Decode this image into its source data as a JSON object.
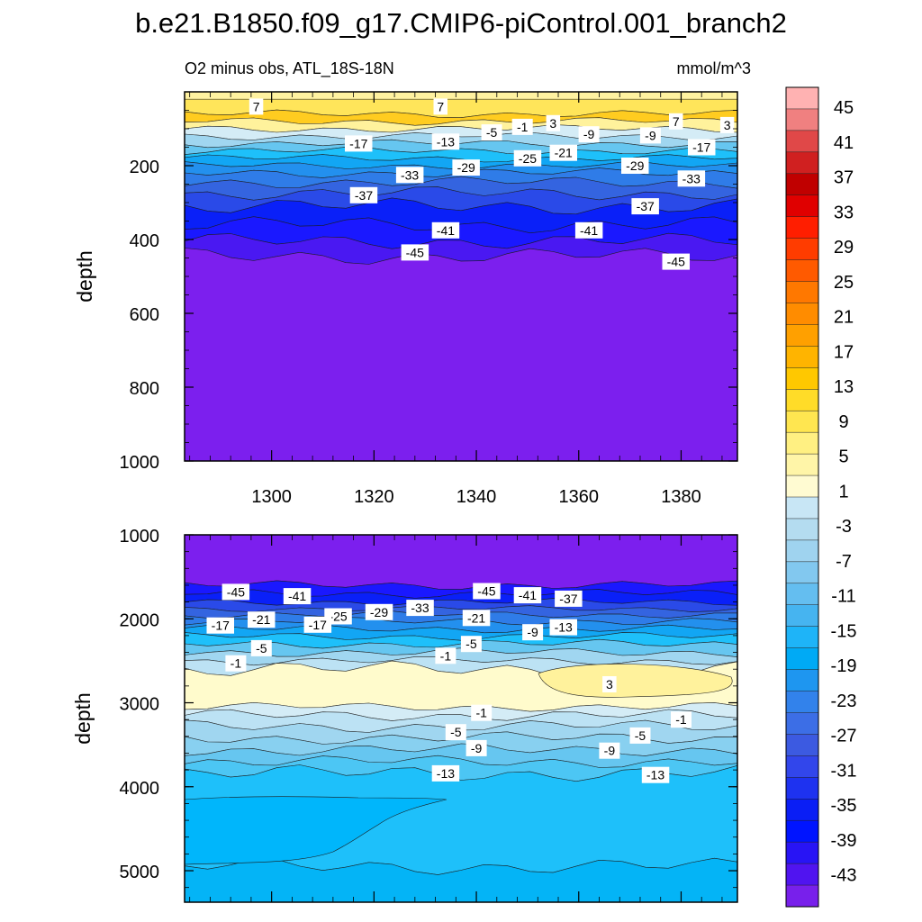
{
  "title": "b.e21.B1850.f09_g17.CMIP6-piControl.001_branch2",
  "subtitle_left": "O2 minus obs, ATL_18S-18N",
  "units": "mmol/m^3",
  "chart_data": [
    {
      "type": "contour",
      "panel": "upper",
      "ylabel": "depth",
      "yticks": [
        "200",
        "400",
        "600",
        "800",
        "1000"
      ],
      "ylim": [
        0,
        1000
      ],
      "xticks": [
        "1300",
        "1320",
        "1340",
        "1360",
        "1380"
      ],
      "xlim": [
        1283,
        1391
      ],
      "bands": [
        {
          "from": 20,
          "to": 60,
          "value": 5
        },
        {
          "from": 60,
          "to": 80,
          "value": 7
        },
        {
          "from": 80,
          "to": 100,
          "value": 3
        },
        {
          "from": 100,
          "to": 120,
          "value": -1
        },
        {
          "from": 120,
          "to": 140,
          "value": -5
        },
        {
          "from": 140,
          "to": 160,
          "value": -9
        },
        {
          "from": 160,
          "to": 180,
          "value": -13
        },
        {
          "from": 180,
          "to": 200,
          "value": -17
        },
        {
          "from": 200,
          "to": 220,
          "value": -21
        },
        {
          "from": 220,
          "to": 245,
          "value": -25
        },
        {
          "from": 245,
          "to": 275,
          "value": -29
        },
        {
          "from": 275,
          "to": 310,
          "value": -33
        },
        {
          "from": 310,
          "to": 360,
          "value": -37
        },
        {
          "from": 360,
          "to": 405,
          "value": -41
        },
        {
          "from": 405,
          "to": 445,
          "value": -43
        },
        {
          "from": 445,
          "to": 1000,
          "value": -45
        }
      ],
      "contour_labels": [
        {
          "text": "7",
          "x": 1297,
          "y": 40
        },
        {
          "text": "7",
          "x": 1333,
          "y": 40
        },
        {
          "text": "-5",
          "x": 1343,
          "y": 110
        },
        {
          "text": "-1",
          "x": 1349,
          "y": 95
        },
        {
          "text": "3",
          "x": 1355,
          "y": 85
        },
        {
          "text": "-9",
          "x": 1362,
          "y": 115
        },
        {
          "text": "-9",
          "x": 1374,
          "y": 118
        },
        {
          "text": "7",
          "x": 1379,
          "y": 80
        },
        {
          "text": "3",
          "x": 1389,
          "y": 90
        },
        {
          "text": "-17",
          "x": 1317,
          "y": 140
        },
        {
          "text": "-13",
          "x": 1334,
          "y": 135
        },
        {
          "text": "-21",
          "x": 1357,
          "y": 165
        },
        {
          "text": "-25",
          "x": 1350,
          "y": 180
        },
        {
          "text": "-29",
          "x": 1338,
          "y": 205
        },
        {
          "text": "-29",
          "x": 1371,
          "y": 200
        },
        {
          "text": "-17",
          "x": 1384,
          "y": 150
        },
        {
          "text": "-33",
          "x": 1327,
          "y": 225
        },
        {
          "text": "-33",
          "x": 1382,
          "y": 235
        },
        {
          "text": "-37",
          "x": 1318,
          "y": 280
        },
        {
          "text": "-37",
          "x": 1373,
          "y": 310
        },
        {
          "text": "-41",
          "x": 1334,
          "y": 375
        },
        {
          "text": "-41",
          "x": 1362,
          "y": 375
        },
        {
          "text": "-45",
          "x": 1328,
          "y": 435
        },
        {
          "text": "-45",
          "x": 1379,
          "y": 460
        }
      ]
    },
    {
      "type": "contour",
      "panel": "lower",
      "ylabel": "depth",
      "yticks": [
        "1000",
        "2000",
        "3000",
        "4000",
        "5000"
      ],
      "ylim": [
        1000,
        5375
      ],
      "xlim": [
        1283,
        1391
      ],
      "bands": [
        {
          "from": 1000,
          "to": 1600,
          "value": -45
        },
        {
          "from": 1600,
          "to": 1700,
          "value": -41
        },
        {
          "from": 1700,
          "to": 1800,
          "value": -37
        },
        {
          "from": 1800,
          "to": 1880,
          "value": -33
        },
        {
          "from": 1880,
          "to": 1950,
          "value": -29
        },
        {
          "from": 1950,
          "to": 2030,
          "value": -25
        },
        {
          "from": 2030,
          "to": 2120,
          "value": -21
        },
        {
          "from": 2120,
          "to": 2210,
          "value": -17
        },
        {
          "from": 2210,
          "to": 2300,
          "value": -13
        },
        {
          "from": 2300,
          "to": 2400,
          "value": -9
        },
        {
          "from": 2400,
          "to": 2500,
          "value": -5
        },
        {
          "from": 2500,
          "to": 2600,
          "value": -3
        },
        {
          "from": 2600,
          "to": 3050,
          "value": 1
        },
        {
          "from": 3050,
          "to": 3150,
          "value": -1
        },
        {
          "from": 3150,
          "to": 3280,
          "value": -3
        },
        {
          "from": 3280,
          "to": 3420,
          "value": -5
        },
        {
          "from": 3420,
          "to": 3560,
          "value": -7
        },
        {
          "from": 3560,
          "to": 3700,
          "value": -9
        },
        {
          "from": 3700,
          "to": 3840,
          "value": -11
        },
        {
          "from": 3840,
          "to": 4950,
          "value": -13
        },
        {
          "from": 4950,
          "to": 5375,
          "value": -15
        }
      ],
      "contour_labels": [
        {
          "text": "-45",
          "x": 1293,
          "y": 1680
        },
        {
          "text": "-41",
          "x": 1305,
          "y": 1730
        },
        {
          "text": "-45",
          "x": 1342,
          "y": 1670
        },
        {
          "text": "-41",
          "x": 1350,
          "y": 1720
        },
        {
          "text": "-37",
          "x": 1358,
          "y": 1760
        },
        {
          "text": "-25",
          "x": 1313,
          "y": 1970
        },
        {
          "text": "-29",
          "x": 1321,
          "y": 1920
        },
        {
          "text": "-33",
          "x": 1329,
          "y": 1870
        },
        {
          "text": "-17",
          "x": 1290,
          "y": 2080
        },
        {
          "text": "-21",
          "x": 1298,
          "y": 2010
        },
        {
          "text": "-17",
          "x": 1309,
          "y": 2070
        },
        {
          "text": "-21",
          "x": 1340,
          "y": 1990
        },
        {
          "text": "-9",
          "x": 1351,
          "y": 2160
        },
        {
          "text": "-13",
          "x": 1357,
          "y": 2100
        },
        {
          "text": "-5",
          "x": 1298,
          "y": 2350
        },
        {
          "text": "-5",
          "x": 1339,
          "y": 2300
        },
        {
          "text": "-1",
          "x": 1293,
          "y": 2530
        },
        {
          "text": "-1",
          "x": 1334,
          "y": 2440
        },
        {
          "text": "3",
          "x": 1366,
          "y": 2780
        },
        {
          "text": "-1",
          "x": 1341,
          "y": 3120
        },
        {
          "text": "-1",
          "x": 1380,
          "y": 3200
        },
        {
          "text": "-5",
          "x": 1336,
          "y": 3350
        },
        {
          "text": "-5",
          "x": 1372,
          "y": 3390
        },
        {
          "text": "-9",
          "x": 1340,
          "y": 3540
        },
        {
          "text": "-9",
          "x": 1366,
          "y": 3570
        },
        {
          "text": "-13",
          "x": 1334,
          "y": 3840
        },
        {
          "text": "-13",
          "x": 1375,
          "y": 3860
        }
      ]
    }
  ],
  "colorbar": {
    "labels": [
      "45",
      "41",
      "37",
      "33",
      "29",
      "25",
      "21",
      "17",
      "13",
      "9",
      "5",
      "1",
      "-3",
      "-7",
      "-11",
      "-15",
      "-19",
      "-23",
      "-27",
      "-31",
      "-35",
      "-39",
      "-43"
    ],
    "colors": [
      "#ffb2b2",
      "#f08080",
      "#e04848",
      "#d02020",
      "#c00000",
      "#e00000",
      "#ff1e00",
      "#ff3c00",
      "#ff5a00",
      "#ff7800",
      "#ff8c00",
      "#ffa000",
      "#ffb400",
      "#ffc800",
      "#ffdc28",
      "#ffe650",
      "#fff082",
      "#fff5a8",
      "#fffbd2",
      "#c8e6f5",
      "#b4dcf0",
      "#9fd3ef",
      "#82c8ef",
      "#64bef0",
      "#46b4f0",
      "#1eb4f8",
      "#00aaf5",
      "#1e96f0",
      "#3282eb",
      "#3c6ee6",
      "#3c5ae1",
      "#3246eb",
      "#1e32f0",
      "#0a1ef5",
      "#0014ff",
      "#2814f5",
      "#5014f0",
      "#7820eb"
    ]
  }
}
